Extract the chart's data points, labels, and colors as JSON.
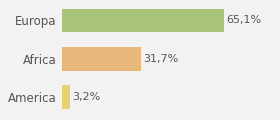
{
  "categories": [
    "America",
    "Africa",
    "Europa"
  ],
  "values": [
    3.2,
    31.7,
    65.1
  ],
  "labels": [
    "3,2%",
    "31,7%",
    "65,1%"
  ],
  "bar_colors": [
    "#e8d070",
    "#e8b87a",
    "#a8c47a"
  ],
  "background_color": "#f2f2f2",
  "xlim": [
    0,
    82
  ],
  "label_fontsize": 8,
  "tick_fontsize": 8.5,
  "bar_height": 0.62
}
